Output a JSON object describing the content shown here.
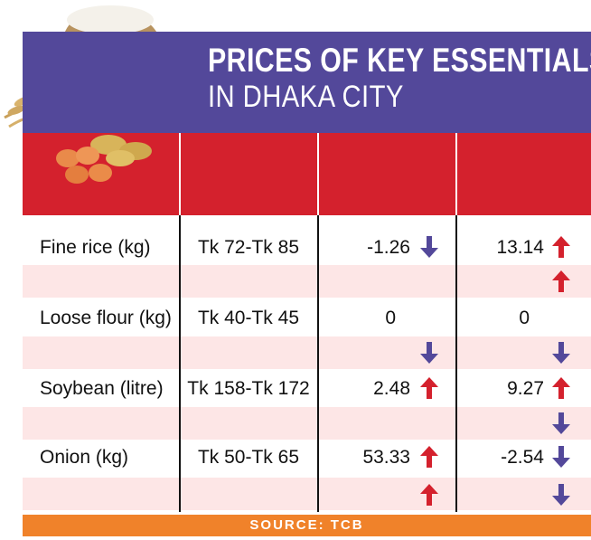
{
  "title_line1": "PRICES OF KEY ESSENTIALS",
  "title_line2": "IN DHAKA CITY",
  "source": "SOURCE: TCB",
  "colors": {
    "banner": "#53489a",
    "header": "#d4212d",
    "band": "#fde6e6",
    "source": "#f0822a",
    "up_arrow": "#d4212d",
    "down_arrow": "#53489a"
  },
  "chart_data": {
    "type": "table",
    "rows": [
      {
        "label": "Fine rice (kg)",
        "range": "Tk 72-Tk 85",
        "v1": "-1.26",
        "d1": "down",
        "v2": "13.14",
        "d2": "up",
        "band_a2": "up"
      },
      {
        "label": "Loose flour (kg)",
        "range": "Tk 40-Tk 45",
        "v1": "0",
        "d1": "",
        "v2": "0",
        "d2": "",
        "band_a1": "down",
        "band_a2": "down"
      },
      {
        "label": "Soybean (litre)",
        "range": "Tk 158-Tk 172",
        "v1": "2.48",
        "d1": "up",
        "v2": "9.27",
        "d2": "up",
        "band_a2": "down"
      },
      {
        "label": "Onion (kg)",
        "range": "Tk 50-Tk 65",
        "v1": "53.33",
        "d1": "up",
        "v2": "-2.54",
        "d2": "down",
        "band_a1": "up",
        "band_a2": "down"
      }
    ]
  }
}
